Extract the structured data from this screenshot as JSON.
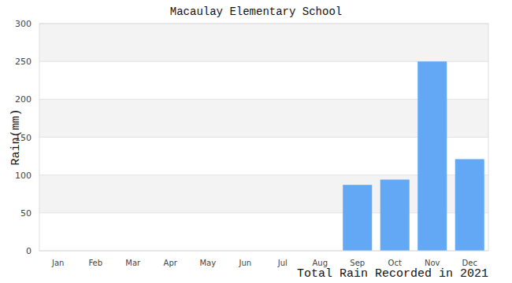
{
  "chart_data": {
    "type": "bar",
    "title": "Macaulay Elementary School",
    "x_label": "Total Rain Recorded in 2021",
    "y_label": "Rain(mm)",
    "categories": [
      "Jan",
      "Feb",
      "Mar",
      "Apr",
      "May",
      "Jun",
      "Jul",
      "Aug",
      "Sep",
      "Oct",
      "Nov",
      "Dec"
    ],
    "values": [
      0,
      0,
      0,
      0,
      0,
      0,
      0,
      0,
      87,
      94,
      250,
      121
    ],
    "color": "#62a8f4",
    "ylim": [
      0,
      300
    ],
    "yticks": [
      0,
      50,
      100,
      150,
      200,
      250,
      300
    ],
    "grid": true
  }
}
